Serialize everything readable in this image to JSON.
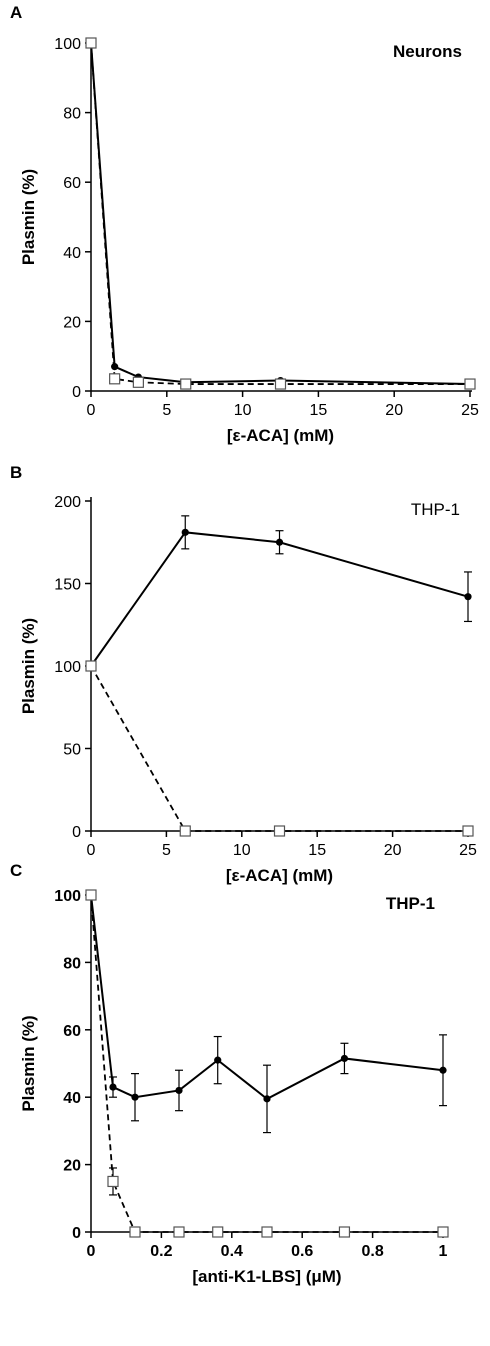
{
  "chart_data": [
    {
      "type": "line",
      "panel_label": "A",
      "annotation": "Neurons",
      "xlabel": "[ε-ACA] (mM)",
      "ylabel": "Plasmin (%)",
      "xlim": [
        0,
        25
      ],
      "ylim": [
        0,
        100
      ],
      "xticks": [
        0,
        5,
        10,
        15,
        20,
        25
      ],
      "yticks": [
        0,
        20,
        40,
        60,
        80,
        100
      ],
      "series": [
        {
          "marker": "filled-circle",
          "line": "solid",
          "x": [
            0,
            1.56,
            3.125,
            6.25,
            12.5,
            25
          ],
          "y": [
            100,
            7,
            4,
            2.5,
            3,
            2
          ]
        },
        {
          "marker": "open-square",
          "line": "dashed",
          "x": [
            0,
            1.56,
            3.125,
            6.25,
            12.5,
            25
          ],
          "y": [
            100,
            3.5,
            2.5,
            2,
            2,
            2
          ]
        }
      ]
    },
    {
      "type": "line",
      "panel_label": "B",
      "annotation": "THP-1",
      "xlabel": "[ε-ACA] (mM)",
      "ylabel": "Plasmin (%)",
      "xlim": [
        0,
        25
      ],
      "ylim": [
        0,
        200
      ],
      "xticks": [
        0,
        5,
        10,
        15,
        20,
        25
      ],
      "yticks": [
        0,
        50,
        100,
        150,
        200
      ],
      "series": [
        {
          "marker": "filled-circle",
          "line": "solid",
          "x": [
            0,
            6.25,
            12.5,
            25
          ],
          "y": [
            100,
            181,
            175,
            142
          ],
          "err": [
            0,
            10,
            7,
            15
          ]
        },
        {
          "marker": "open-square",
          "line": "dashed",
          "x": [
            0,
            6.25,
            12.5,
            25
          ],
          "y": [
            100,
            0,
            0,
            0
          ]
        }
      ]
    },
    {
      "type": "line",
      "panel_label": "C",
      "annotation": "THP-1",
      "xlabel": "[anti-K1-LBS] (μM)",
      "ylabel": "Plasmin (%)",
      "xlim": [
        0,
        1
      ],
      "ylim": [
        0,
        100
      ],
      "xticks": [
        0,
        0.2,
        0.4,
        0.6,
        0.8,
        1
      ],
      "yticks": [
        0,
        20,
        40,
        60,
        80,
        100
      ],
      "series": [
        {
          "marker": "filled-circle",
          "line": "solid",
          "x": [
            0,
            0.0625,
            0.125,
            0.25,
            0.36,
            0.5,
            0.72,
            1
          ],
          "y": [
            100,
            43,
            40,
            42,
            51,
            39.5,
            51.5,
            48
          ],
          "err": [
            0,
            3,
            7,
            6,
            7,
            10,
            4.5,
            10.5
          ]
        },
        {
          "marker": "open-square",
          "line": "dashed",
          "x": [
            0,
            0.0625,
            0.125,
            0.25,
            0.36,
            0.5,
            0.72,
            1
          ],
          "y": [
            100,
            15,
            0,
            0,
            0,
            0,
            0,
            0
          ],
          "err": [
            0,
            4,
            0,
            0,
            0,
            0,
            0,
            0
          ]
        }
      ]
    }
  ]
}
